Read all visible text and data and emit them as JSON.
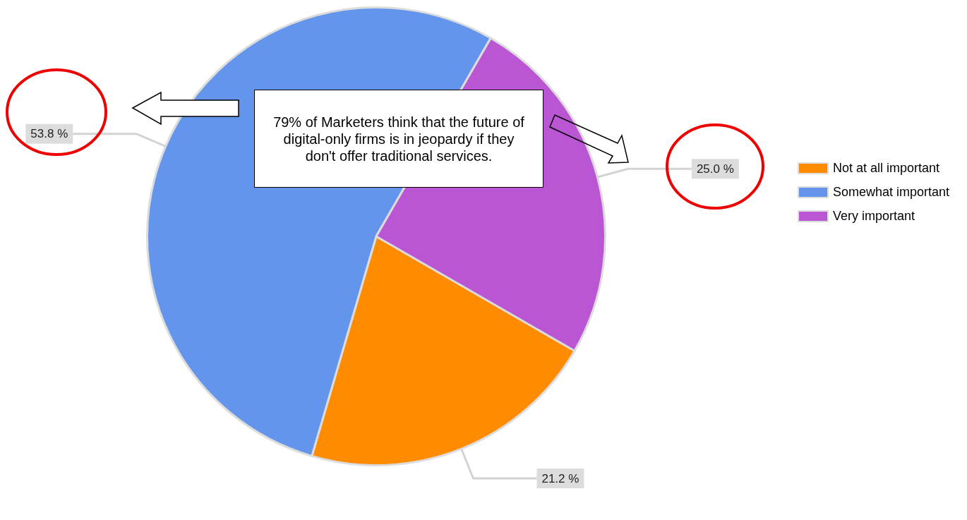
{
  "chart_data": {
    "type": "pie",
    "categories": [
      "Not at all important",
      "Somewhat important",
      "Very important"
    ],
    "values": [
      21.2,
      53.8,
      25.0
    ],
    "colors": [
      "#ff8c00",
      "#6495ed",
      "#ba55d3"
    ],
    "value_labels": [
      "21.2 %",
      "53.8 %",
      "25.0 %"
    ],
    "legend": "right",
    "annotations": [
      "79% of Marketers think that the future of digital-only firms is in jeopardy if they don't offer traditional services."
    ]
  }
}
